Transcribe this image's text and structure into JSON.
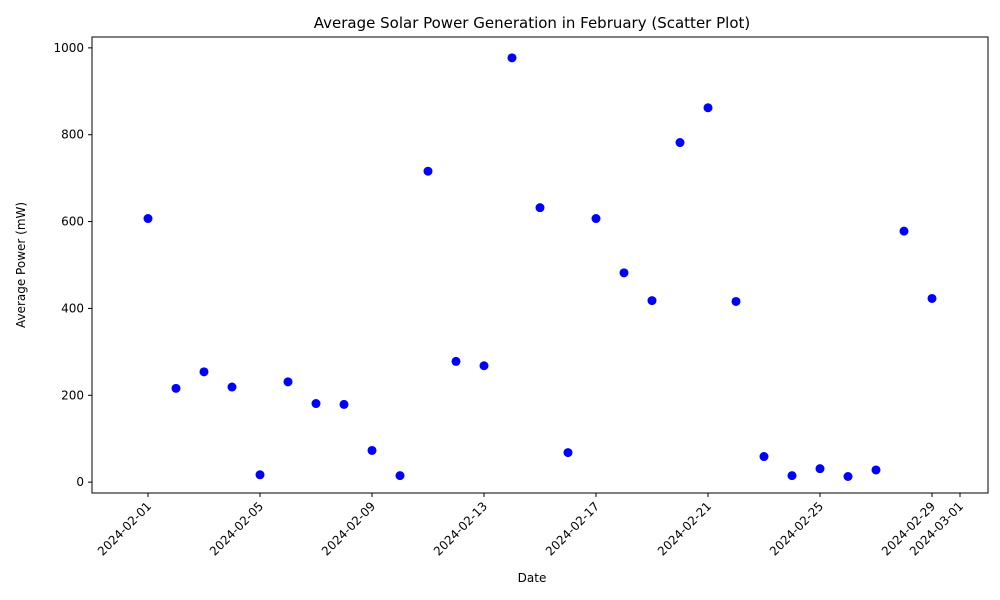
{
  "chart_data": {
    "type": "scatter",
    "title": "Average Solar Power Generation in February (Scatter Plot)",
    "xlabel": "Date",
    "ylabel": "Average Power (mW)",
    "grid": false,
    "colors": {
      "points": "#0000ff"
    },
    "x_ticks": [
      "2024-02-01",
      "2024-02-05",
      "2024-02-09",
      "2024-02-13",
      "2024-02-17",
      "2024-02-21",
      "2024-02-25",
      "2024-02-29",
      "2024-03-01"
    ],
    "y_ticks": [
      0,
      200,
      400,
      600,
      800,
      1000
    ],
    "xlim": [
      "2024-01-30",
      "2024-03-02"
    ],
    "ylim": [
      -25,
      1025
    ],
    "points": [
      {
        "x": "2024-02-01",
        "y": 607
      },
      {
        "x": "2024-02-02",
        "y": 216
      },
      {
        "x": "2024-02-03",
        "y": 254
      },
      {
        "x": "2024-02-04",
        "y": 219
      },
      {
        "x": "2024-02-05",
        "y": 17
      },
      {
        "x": "2024-02-06",
        "y": 231
      },
      {
        "x": "2024-02-07",
        "y": 181
      },
      {
        "x": "2024-02-08",
        "y": 179
      },
      {
        "x": "2024-02-09",
        "y": 73
      },
      {
        "x": "2024-02-10",
        "y": 15
      },
      {
        "x": "2024-02-11",
        "y": 716
      },
      {
        "x": "2024-02-12",
        "y": 278
      },
      {
        "x": "2024-02-13",
        "y": 268
      },
      {
        "x": "2024-02-14",
        "y": 977
      },
      {
        "x": "2024-02-15",
        "y": 632
      },
      {
        "x": "2024-02-16",
        "y": 68
      },
      {
        "x": "2024-02-17",
        "y": 607
      },
      {
        "x": "2024-02-18",
        "y": 482
      },
      {
        "x": "2024-02-19",
        "y": 418
      },
      {
        "x": "2024-02-20",
        "y": 782
      },
      {
        "x": "2024-02-21",
        "y": 862
      },
      {
        "x": "2024-02-22",
        "y": 416
      },
      {
        "x": "2024-02-23",
        "y": 59
      },
      {
        "x": "2024-02-24",
        "y": 15
      },
      {
        "x": "2024-02-25",
        "y": 31
      },
      {
        "x": "2024-02-26",
        "y": 13
      },
      {
        "x": "2024-02-27",
        "y": 28
      },
      {
        "x": "2024-02-28",
        "y": 578
      },
      {
        "x": "2024-02-29",
        "y": 423
      }
    ]
  }
}
